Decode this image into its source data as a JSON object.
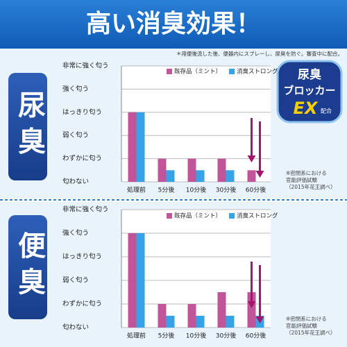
{
  "header": {
    "title": "高い消臭効果！",
    "note": "＊用便後流した後、便器内にスプレーし、尿臭を防ぐ。審査中に配合。"
  },
  "badge": {
    "line1": "尿臭",
    "line2": "ブロッカー",
    "line3": "EX",
    "suffix": "配合"
  },
  "chart_data": [
    {
      "type": "bar",
      "title": "尿臭",
      "categories": [
        "処理前",
        "5分後",
        "10分後",
        "30分後",
        "60分後"
      ],
      "series": [
        {
          "name": "既存品（ミント）",
          "color": "#c2559a",
          "values": [
            3,
            1,
            1,
            1,
            0.5
          ]
        },
        {
          "name": "消臭ストロング",
          "color": "#36a3e6",
          "values": [
            3,
            0.5,
            0.5,
            0.5,
            0
          ]
        }
      ],
      "ylim": [
        0,
        5
      ],
      "yticks": [
        {
          "value": 0,
          "label": "匂わない"
        },
        {
          "value": 1,
          "label": "わずかに匂う"
        },
        {
          "value": 2,
          "label": "弱く匂う"
        },
        {
          "value": 3,
          "label": "はっきり匂う"
        },
        {
          "value": 4,
          "label": "強く匂う"
        },
        {
          "value": 5,
          "label": "非常に強く匂う"
        }
      ],
      "grid": true,
      "annotation_lines": [
        "※密閉系における",
        "官能評価試験",
        "（2015年花王調べ）"
      ]
    },
    {
      "type": "bar",
      "title": "便臭",
      "categories": [
        "処理前",
        "5分後",
        "10分後",
        "30分後",
        "60分後"
      ],
      "series": [
        {
          "name": "既存品（ミント）",
          "color": "#c2559a",
          "values": [
            4,
            1,
            1,
            1.5,
            1.5
          ]
        },
        {
          "name": "消臭ストロング",
          "color": "#36a3e6",
          "values": [
            4,
            0.5,
            0.5,
            0.5,
            0.5
          ]
        }
      ],
      "ylim": [
        0,
        5
      ],
      "yticks": [
        {
          "value": 0,
          "label": "匂わない"
        },
        {
          "value": 1,
          "label": "わずかに匂う"
        },
        {
          "value": 2,
          "label": "弱く匂う"
        },
        {
          "value": 3,
          "label": "はっきり匂う"
        },
        {
          "value": 4,
          "label": "強く匂う"
        },
        {
          "value": 5,
          "label": "非常に強く匂う"
        }
      ],
      "grid": true,
      "annotation_lines": [
        "※密閉系における",
        "官能評価試験",
        "（2015年花王調べ）"
      ]
    }
  ]
}
